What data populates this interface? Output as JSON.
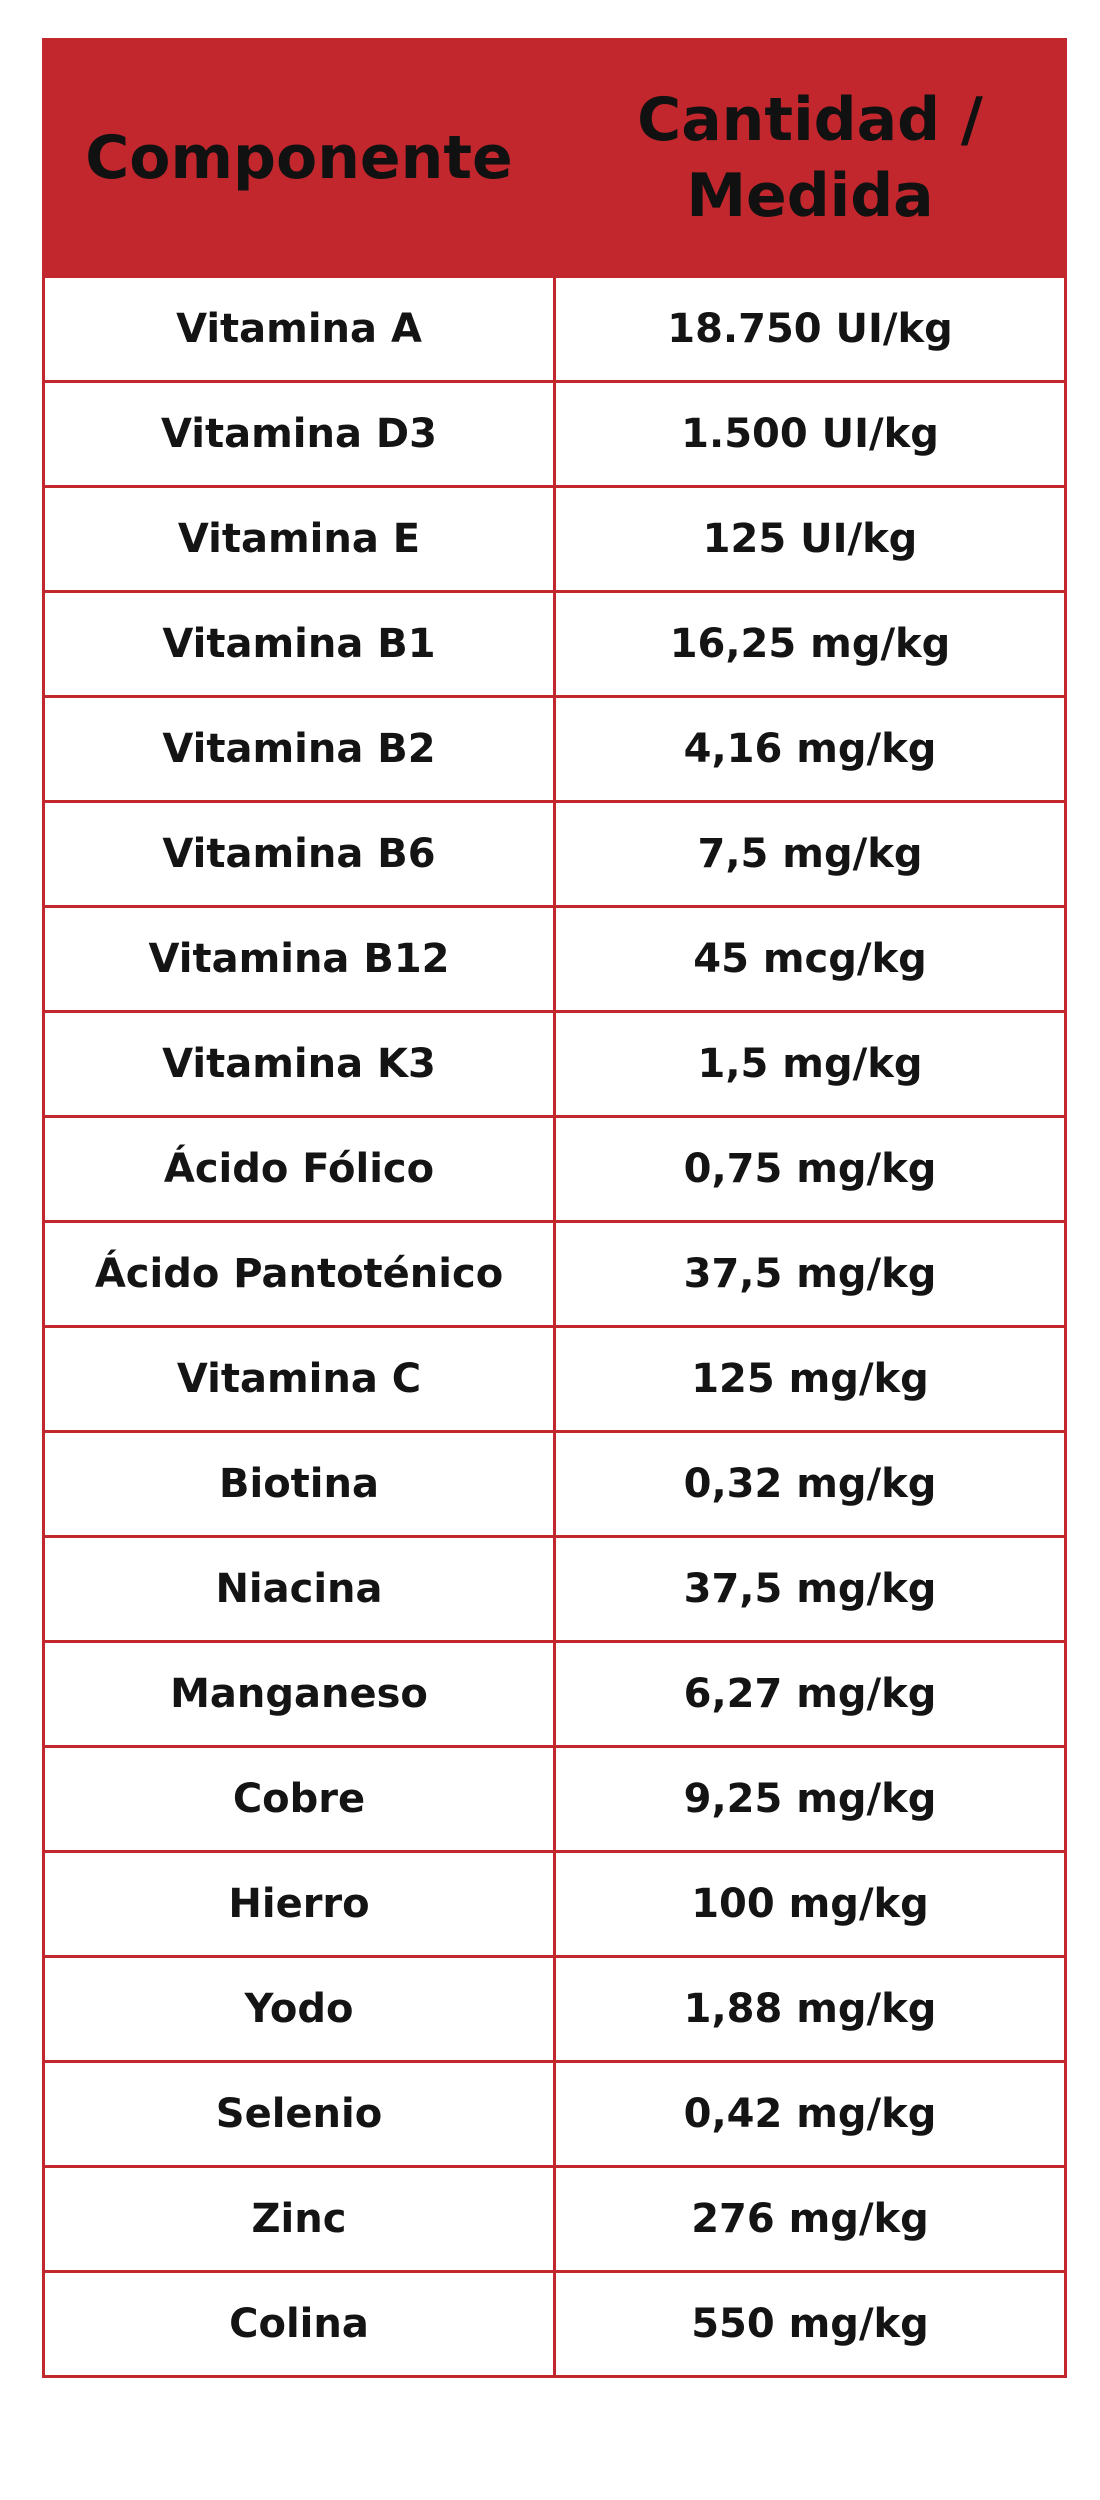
{
  "colors": {
    "accent": "#c1272d",
    "text": "#141414",
    "background": "#ffffff"
  },
  "table": {
    "headers": [
      "Componente",
      "Cantidad /\nMedida"
    ],
    "header_lines": {
      "component": "Componente",
      "amount_line1": "Cantidad /",
      "amount_line2": "Medida"
    },
    "rows": [
      {
        "component": "Vitamina A",
        "amount": "18.750 UI/kg"
      },
      {
        "component": "Vitamina D3",
        "amount": "1.500 UI/kg"
      },
      {
        "component": "Vitamina E",
        "amount": "125 UI/kg"
      },
      {
        "component": "Vitamina B1",
        "amount": "16,25 mg/kg"
      },
      {
        "component": "Vitamina B2",
        "amount": "4,16 mg/kg"
      },
      {
        "component": "Vitamina B6",
        "amount": "7,5 mg/kg"
      },
      {
        "component": "Vitamina B12",
        "amount": "45 mcg/kg"
      },
      {
        "component": "Vitamina K3",
        "amount": "1,5 mg/kg"
      },
      {
        "component": "Ácido Fólico",
        "amount": "0,75 mg/kg"
      },
      {
        "component": "Ácido Pantoténico",
        "amount": "37,5 mg/kg"
      },
      {
        "component": "Vitamina C",
        "amount": "125 mg/kg"
      },
      {
        "component": "Biotina",
        "amount": "0,32 mg/kg"
      },
      {
        "component": "Niacina",
        "amount": "37,5 mg/kg"
      },
      {
        "component": "Manganeso",
        "amount": "6,27 mg/kg"
      },
      {
        "component": "Cobre",
        "amount": "9,25 mg/kg"
      },
      {
        "component": "Hierro",
        "amount": "100 mg/kg"
      },
      {
        "component": "Yodo",
        "amount": "1,88 mg/kg"
      },
      {
        "component": "Selenio",
        "amount": "0,42 mg/kg"
      },
      {
        "component": "Zinc",
        "amount": "276 mg/kg"
      },
      {
        "component": "Colina",
        "amount": "550 mg/kg"
      }
    ]
  }
}
